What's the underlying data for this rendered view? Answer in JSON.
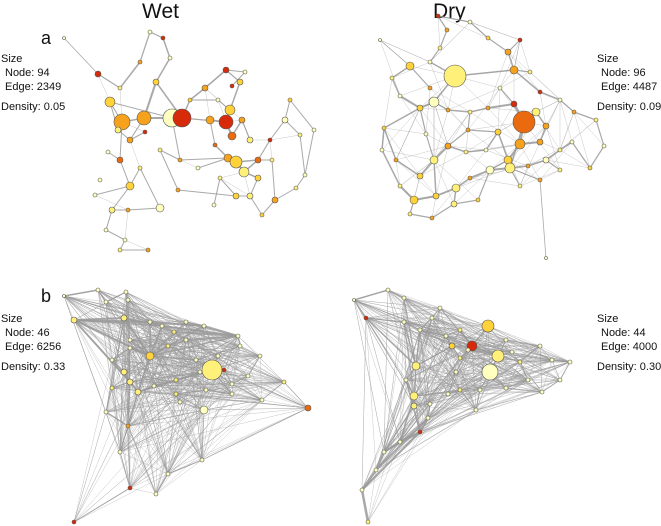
{
  "columns": {
    "wet": "Wet",
    "dry": "Dry"
  },
  "panels": [
    {
      "label": "a",
      "wet": {
        "size_label": "Size",
        "node": "Node: 94",
        "edge": "Edge: 2349",
        "density": "Density: 0.05"
      },
      "dry": {
        "size_label": "Size",
        "node": "Node: 96",
        "edge": "Edge: 4487",
        "density": "Density: 0.09"
      }
    },
    {
      "label": "b",
      "wet": {
        "size_label": "Size",
        "node": "Node: 46",
        "edge": "Edge: 6256",
        "density": "Density: 0.33"
      },
      "dry": {
        "size_label": "Size",
        "node": "Node: 44",
        "edge": "Edge: 4000",
        "density": "Density: 0.30"
      }
    }
  ],
  "colors": {
    "edge": "#9a9a9a",
    "node_scale": [
      "#ffffc0",
      "#fff07a",
      "#ffd23a",
      "#f7a21c",
      "#ea6a0f",
      "#d62a0a"
    ],
    "node_stroke": "#555555"
  }
}
